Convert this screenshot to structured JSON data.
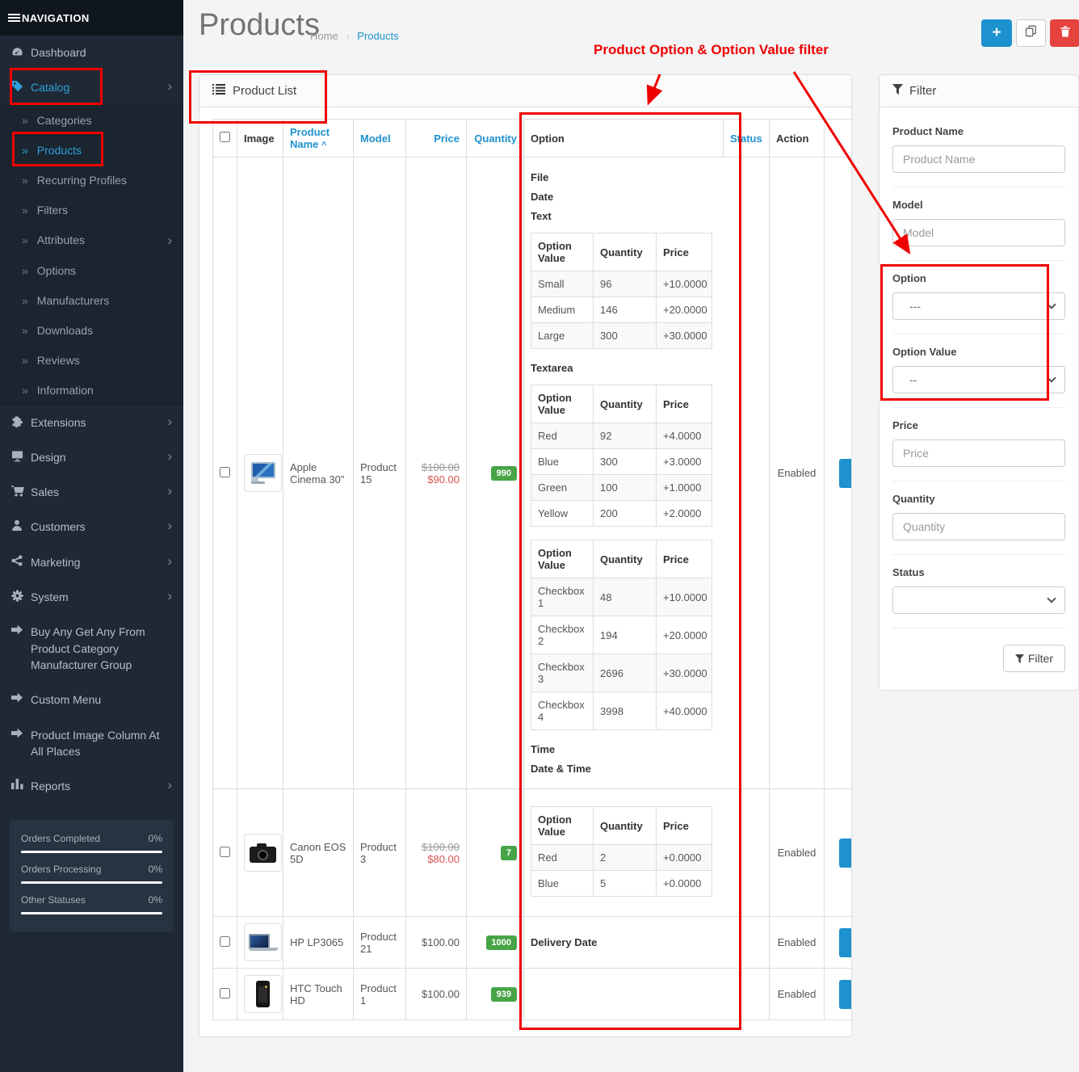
{
  "colors": {
    "accent_blue": "#1e91cf",
    "sidebar_active_blue": "#2f9fd9",
    "delete_red": "#e5433e",
    "badge_green": "#47a447",
    "special_price_red": "#d9534f",
    "annotation_red": "#ef0000"
  },
  "sidebar": {
    "header": "NAVIGATION",
    "menu": [
      {
        "id": "dashboard",
        "label": "Dashboard",
        "icon": "dashboard-icon"
      },
      {
        "id": "catalog",
        "label": "Catalog",
        "icon": "tag-icon",
        "chevron": true,
        "active": true
      },
      {
        "id": "categories",
        "label": "Categories",
        "sub": true
      },
      {
        "id": "products",
        "label": "Products",
        "sub": true,
        "active": true
      },
      {
        "id": "recurring-profiles",
        "label": "Recurring Profiles",
        "sub": true
      },
      {
        "id": "filters",
        "label": "Filters",
        "sub": true
      },
      {
        "id": "attributes",
        "label": "Attributes",
        "sub": true,
        "chevron": true
      },
      {
        "id": "options",
        "label": "Options",
        "sub": true
      },
      {
        "id": "manufacturers",
        "label": "Manufacturers",
        "sub": true
      },
      {
        "id": "downloads",
        "label": "Downloads",
        "sub": true
      },
      {
        "id": "reviews",
        "label": "Reviews",
        "sub": true
      },
      {
        "id": "information",
        "label": "Information",
        "sub": true
      },
      {
        "id": "extensions",
        "label": "Extensions",
        "icon": "puzzle-icon",
        "chevron": true
      },
      {
        "id": "design",
        "label": "Design",
        "icon": "monitor-icon",
        "chevron": true
      },
      {
        "id": "sales",
        "label": "Sales",
        "icon": "cart-icon",
        "chevron": true
      },
      {
        "id": "customers",
        "label": "Customers",
        "icon": "user-icon",
        "chevron": true
      },
      {
        "id": "marketing",
        "label": "Marketing",
        "icon": "share-icon",
        "chevron": true
      },
      {
        "id": "system",
        "label": "System",
        "icon": "gear-icon",
        "chevron": true
      },
      {
        "id": "buy-any-get-any",
        "label": "Buy Any Get Any From Product Category Manufacturer Group",
        "icon": "arrow-right-icon"
      },
      {
        "id": "custom-menu",
        "label": "Custom Menu",
        "icon": "arrow-right-icon"
      },
      {
        "id": "product-image-column",
        "label": "Product Image Column At All Places",
        "icon": "arrow-right-icon"
      },
      {
        "id": "reports",
        "label": "Reports",
        "icon": "bar-chart-icon",
        "chevron": true
      }
    ],
    "stats": [
      {
        "label": "Orders Completed",
        "value": "0%"
      },
      {
        "label": "Orders Processing",
        "value": "0%"
      },
      {
        "label": "Other Statuses",
        "value": "0%"
      }
    ]
  },
  "header": {
    "title": "Products",
    "breadcrumb": [
      "Home",
      "Products"
    ],
    "buttons": [
      {
        "id": "add",
        "icon": "plus-icon"
      },
      {
        "id": "copy",
        "icon": "copy-icon"
      },
      {
        "id": "delete",
        "icon": "trash-icon"
      }
    ]
  },
  "annotation": {
    "label": "Product Option & Option Value filter"
  },
  "panel": {
    "title": "Product List"
  },
  "table": {
    "columns": [
      "Image",
      "Product Name",
      "Model",
      "Price",
      "Quantity",
      "Option",
      "Status",
      "Action"
    ],
    "sort_caret": "^",
    "option_table_columns": [
      "Option Value",
      "Quantity",
      "Price"
    ],
    "rows": [
      {
        "image": "monitor",
        "name": "Apple Cinema 30\"",
        "model": "Product 15",
        "price_old": "$100.00",
        "price": "$90.00",
        "quantity": "990",
        "status": "Enabled",
        "options": [
          {
            "label": "File"
          },
          {
            "label": "Date"
          },
          {
            "label": "Text",
            "values": [
              {
                "value": "Small",
                "quantity": "96",
                "price": "+10.0000"
              },
              {
                "value": "Medium",
                "quantity": "146",
                "price": "+20.0000"
              },
              {
                "value": "Large",
                "quantity": "300",
                "price": "+30.0000"
              }
            ]
          },
          {
            "label": "Textarea",
            "values": [
              {
                "value": "Red",
                "quantity": "92",
                "price": "+4.0000"
              },
              {
                "value": "Blue",
                "quantity": "300",
                "price": "+3.0000"
              },
              {
                "value": "Green",
                "quantity": "100",
                "price": "+1.0000"
              },
              {
                "value": "Yellow",
                "quantity": "200",
                "price": "+2.0000"
              }
            ]
          },
          {
            "label": "",
            "values": [
              {
                "value": "Checkbox 1",
                "quantity": "48",
                "price": "+10.0000"
              },
              {
                "value": "Checkbox 2",
                "quantity": "194",
                "price": "+20.0000"
              },
              {
                "value": "Checkbox 3",
                "quantity": "2696",
                "price": "+30.0000"
              },
              {
                "value": "Checkbox 4",
                "quantity": "3998",
                "price": "+40.0000"
              }
            ]
          },
          {
            "label": "Time"
          },
          {
            "label": "Date & Time"
          }
        ]
      },
      {
        "image": "camera",
        "name": "Canon EOS 5D",
        "model": "Product 3",
        "price_old": "$100.00",
        "price": "$80.00",
        "quantity": "7",
        "status": "Enabled",
        "options": [
          {
            "label": "",
            "values": [
              {
                "value": "Red",
                "quantity": "2",
                "price": "+0.0000"
              },
              {
                "value": "Blue",
                "quantity": "5",
                "price": "+0.0000"
              }
            ]
          }
        ]
      },
      {
        "image": "laptop",
        "name": "HP LP3065",
        "model": "Product 21",
        "price": "$100.00",
        "quantity": "1000",
        "status": "Enabled",
        "options": [
          {
            "label": "Delivery Date"
          }
        ]
      },
      {
        "image": "phone",
        "name": "HTC Touch HD",
        "model": "Product 1",
        "price": "$100.00",
        "quantity": "939",
        "status": "Enabled",
        "options": []
      }
    ]
  },
  "filter": {
    "title": "Filter",
    "button": "Filter",
    "fields": [
      {
        "id": "product-name",
        "label": "Product Name",
        "type": "input",
        "placeholder": "Product Name"
      },
      {
        "id": "model",
        "label": "Model",
        "type": "input",
        "placeholder": "Model"
      },
      {
        "id": "option",
        "label": "Option",
        "type": "select",
        "value": "---"
      },
      {
        "id": "option-value",
        "label": "Option Value",
        "type": "select",
        "value": "--"
      },
      {
        "id": "price",
        "label": "Price",
        "type": "input",
        "placeholder": "Price"
      },
      {
        "id": "quantity",
        "label": "Quantity",
        "type": "input",
        "placeholder": "Quantity"
      },
      {
        "id": "status",
        "label": "Status",
        "type": "select",
        "value": ""
      }
    ]
  }
}
